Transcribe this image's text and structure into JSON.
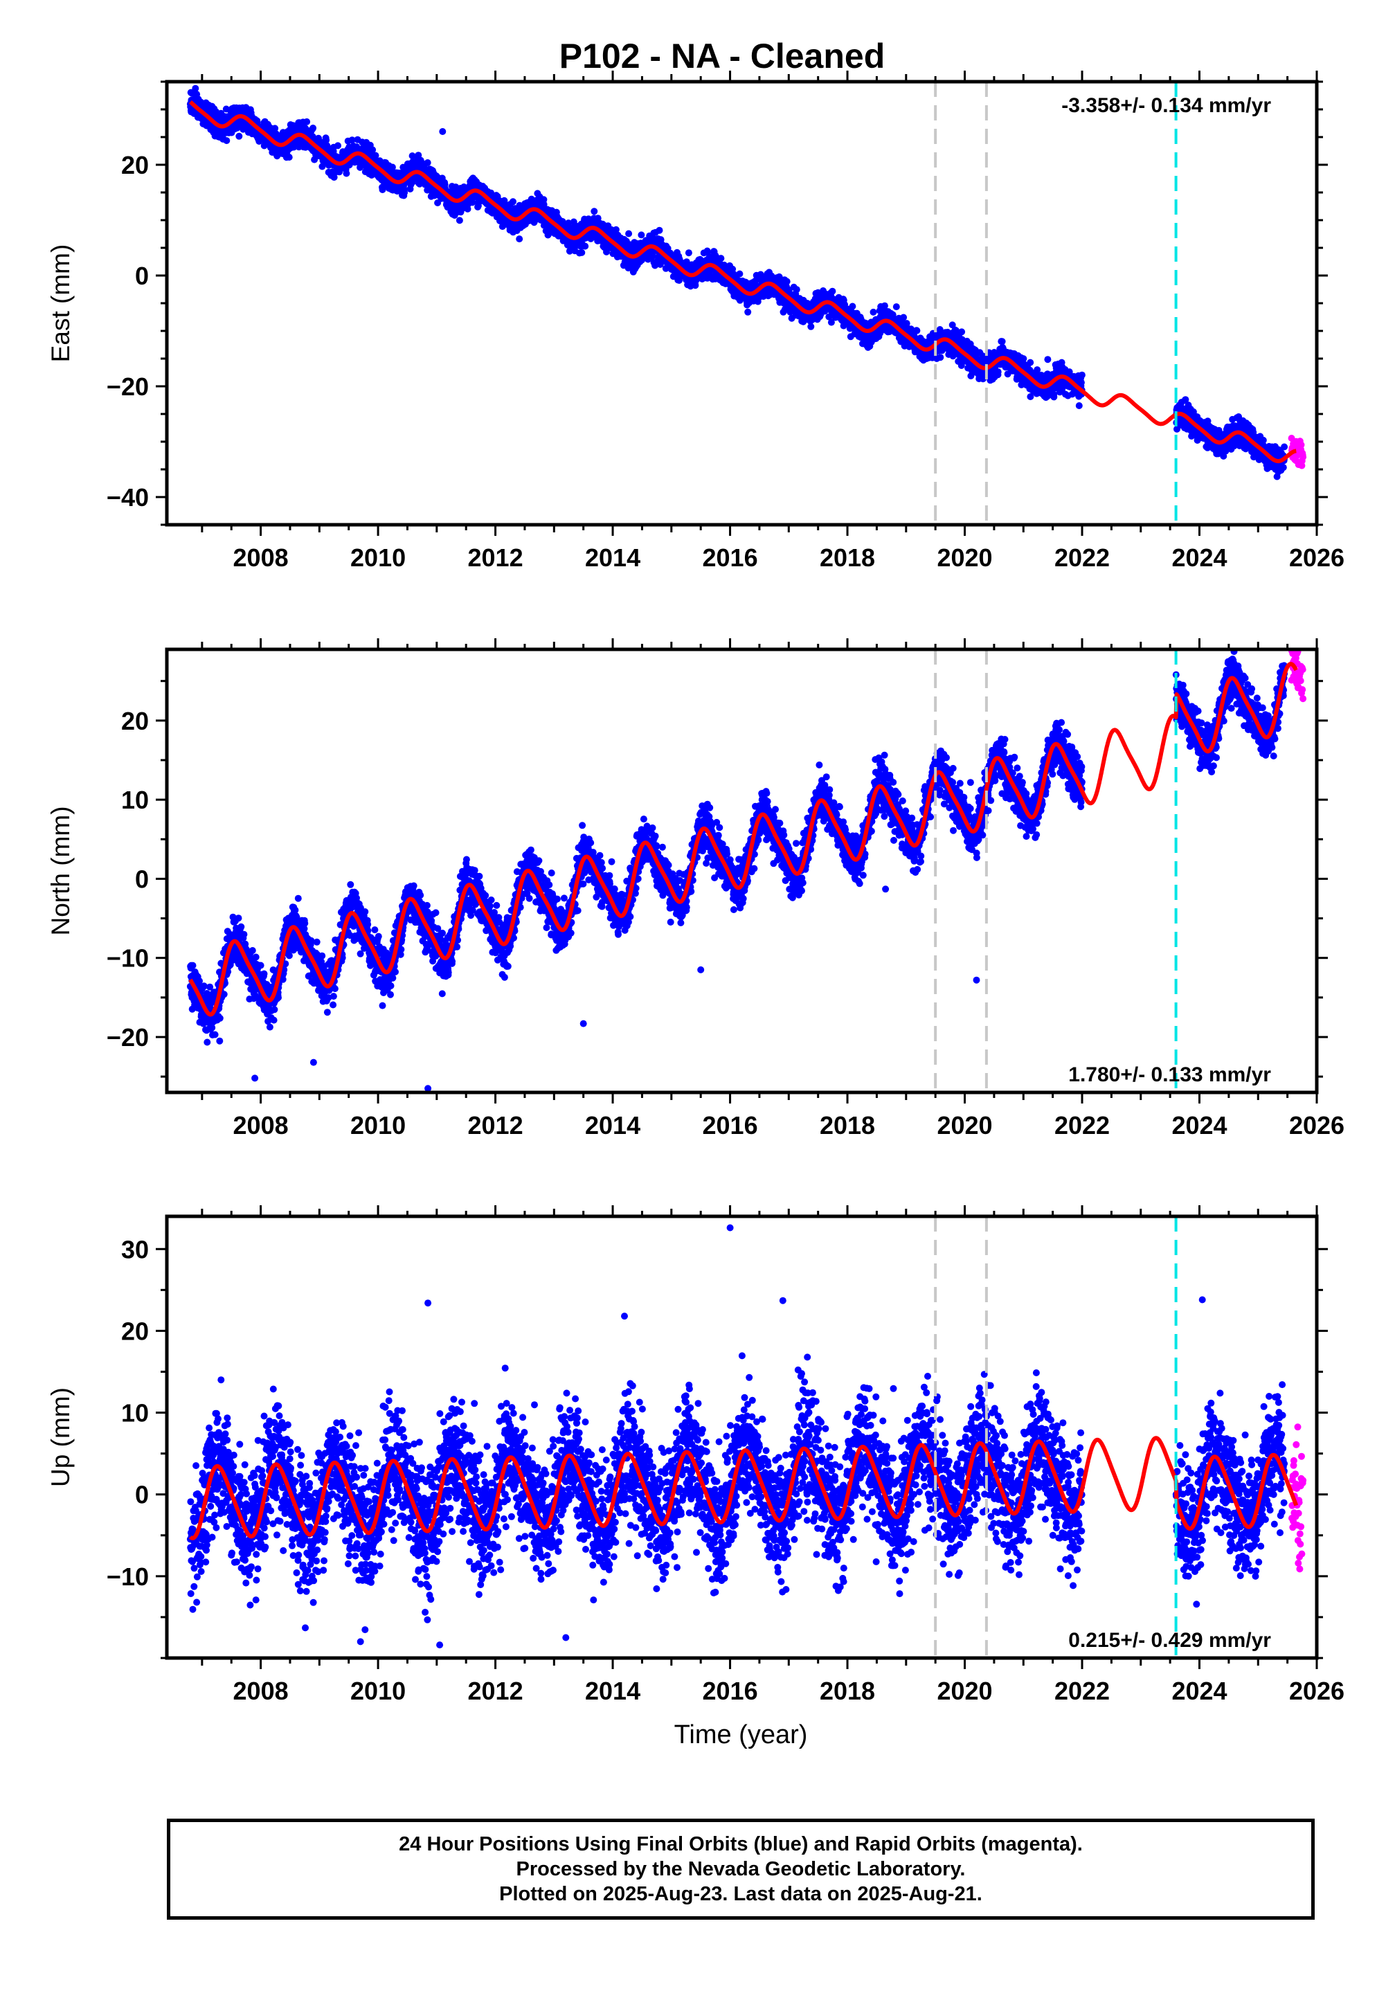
{
  "title": "P102  - NA - Cleaned",
  "xlabel": "Time (year)",
  "colors": {
    "final": "#0000ff",
    "rapid": "#ff00ff",
    "model": "#ff0000",
    "equipment_change": "#c8c8c8",
    "earthquake": "#00e5e5"
  },
  "caption": [
    "24 Hour Positions Using Final Orbits (blue) and Rapid Orbits (magenta).",
    "Processed by the Nevada Geodetic Laboratory.",
    "Plotted on 2025-Aug-23. Last data on 2025-Aug-21."
  ],
  "chart_data": [
    {
      "type": "scatter",
      "ylabel": "East (mm)",
      "xlim": [
        2006.4,
        2026.0
      ],
      "ylim": [
        -45,
        35
      ],
      "xticks": [
        2008,
        2010,
        2012,
        2014,
        2016,
        2018,
        2020,
        2022,
        2024,
        2026
      ],
      "yticks": [
        -40,
        -20,
        0,
        20
      ],
      "velocity_label": "-3.358+/- 0.134 mm/yr",
      "velocity_position": "top-right",
      "model": {
        "base": 30.2,
        "start": 2006.8,
        "rate": -3.358,
        "ann_amp": 1.4,
        "ann_phase": 2007.5,
        "semi_amp": 0.3,
        "offsets": [
          {
            "year": 2023.6,
            "value": 0
          }
        ]
      },
      "scatter": {
        "sigma": 1.1,
        "density_per_year": 330
      },
      "outliers": [
        {
          "x": 2011.1,
          "y": 26
        }
      ],
      "vlines_dashed_gray": [
        2019.5,
        2020.37
      ],
      "vline_dashed_cyan": 2023.6,
      "data_gap": [
        2022.0,
        2023.6
      ],
      "rapid_start": 2025.45
    },
    {
      "type": "scatter",
      "ylabel": "North (mm)",
      "xlim": [
        2006.4,
        2026.0
      ],
      "ylim": [
        -27,
        29
      ],
      "xticks": [
        2008,
        2010,
        2012,
        2014,
        2016,
        2018,
        2020,
        2022,
        2024,
        2026
      ],
      "yticks": [
        -20,
        -10,
        0,
        10,
        20
      ],
      "velocity_label": "1.780+/- 0.133 mm/yr",
      "velocity_position": "bottom-right",
      "model": {
        "base": -13.5,
        "start": 2006.8,
        "rate": 1.78,
        "ann_amp": 4.0,
        "ann_phase": 2007.35,
        "semi_amp": 0.8,
        "offsets": [
          {
            "year": 2023.6,
            "value": 3.0
          }
        ]
      },
      "scatter": {
        "sigma": 1.4,
        "density_per_year": 330
      },
      "outliers": [
        {
          "x": 2007.3,
          "y": -20.5
        },
        {
          "x": 2007.9,
          "y": -25.2
        },
        {
          "x": 2008.9,
          "y": -23.2
        },
        {
          "x": 2010.85,
          "y": -26.5
        },
        {
          "x": 2013.5,
          "y": -18.3
        },
        {
          "x": 2015.5,
          "y": -11.5
        },
        {
          "x": 2020.2,
          "y": -12.8
        },
        {
          "x": 2018.65,
          "y": -1.3
        }
      ],
      "vlines_dashed_gray": [
        2019.5,
        2020.37
      ],
      "vline_dashed_cyan": 2023.6,
      "data_gap": [
        2022.0,
        2023.6
      ],
      "rapid_start": 2025.45
    },
    {
      "type": "scatter",
      "ylabel": "Up (mm)",
      "xlim": [
        2006.4,
        2026.0
      ],
      "ylim": [
        -20,
        34
      ],
      "xticks": [
        2008,
        2010,
        2012,
        2014,
        2016,
        2018,
        2020,
        2022,
        2024,
        2026
      ],
      "yticks": [
        -10,
        0,
        10,
        20,
        30
      ],
      "velocity_label": "0.215+/- 0.429 mm/yr",
      "velocity_position": "bottom-right",
      "model": {
        "base": -1.0,
        "start": 2006.8,
        "rate": 0.215,
        "ann_amp": 4.2,
        "ann_phase": 2007.05,
        "semi_amp": 0.6,
        "offsets": [
          {
            "year": 2023.6,
            "value": -2.5
          }
        ]
      },
      "scatter": {
        "sigma": 3.6,
        "density_per_year": 330
      },
      "outliers": [
        {
          "x": 2016.0,
          "y": 32.6
        },
        {
          "x": 2010.85,
          "y": 23.4
        },
        {
          "x": 2016.9,
          "y": 23.7
        },
        {
          "x": 2024.05,
          "y": 23.8
        },
        {
          "x": 2014.2,
          "y": 21.8
        },
        {
          "x": 2009.7,
          "y": -18.0
        },
        {
          "x": 2011.05,
          "y": -18.4
        },
        {
          "x": 2013.2,
          "y": -17.5
        }
      ],
      "vlines_dashed_gray": [
        2019.5,
        2020.37
      ],
      "vline_dashed_cyan": 2023.6,
      "data_gap": [
        2022.0,
        2023.6
      ],
      "rapid_start": 2025.45
    }
  ]
}
